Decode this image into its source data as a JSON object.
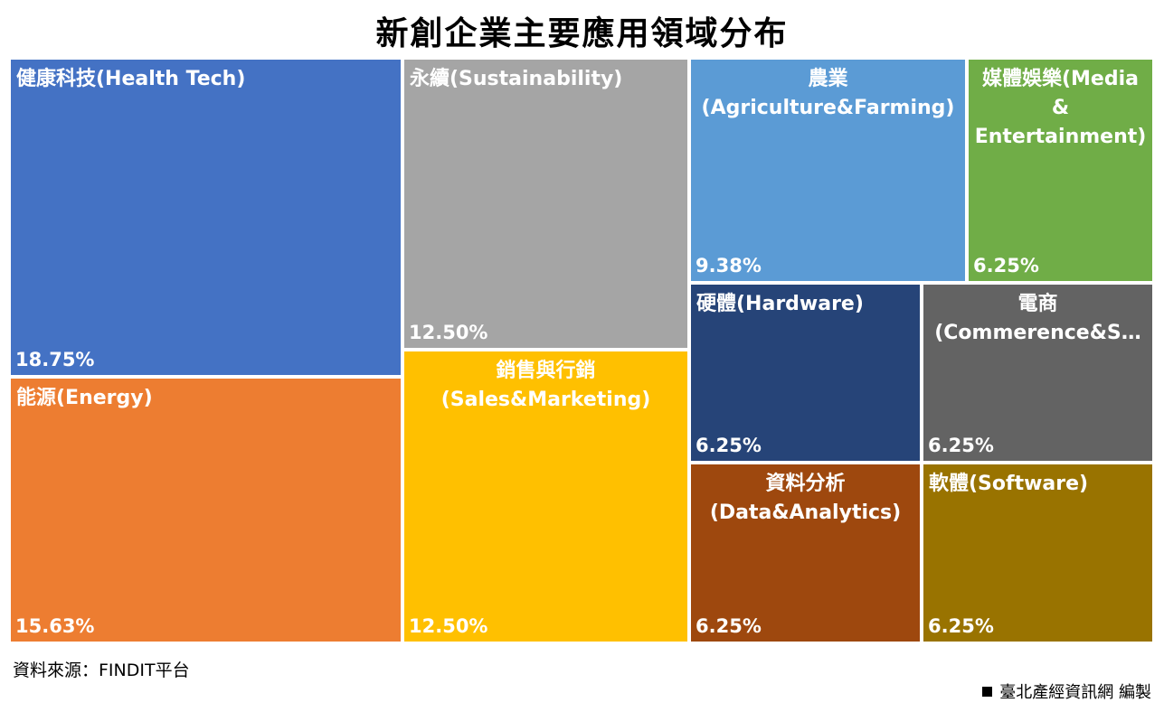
{
  "title": "新創企業主要應用領域分布",
  "source": "資料來源：FINDIT平台",
  "credit": "臺北產經資訊網  編製",
  "chart_data": {
    "type": "treemap",
    "title": "新創企業主要應用領域分布",
    "unit": "%",
    "items": [
      {
        "label": "健康科技(Health Tech)",
        "value": 18.75,
        "display": "18.75%",
        "color": "#4472C4"
      },
      {
        "label": "能源(Energy)",
        "value": 15.63,
        "display": "15.63%",
        "color": "#ED7D31"
      },
      {
        "label": "永續(Sustainability)",
        "value": 12.5,
        "display": "12.50%",
        "color": "#A5A5A5"
      },
      {
        "label": "銷售與行銷\n(Sales&Marketing)",
        "value": 12.5,
        "display": "12.50%",
        "color": "#FFC000"
      },
      {
        "label": "農業\n(Agriculture&Farming)",
        "value": 9.38,
        "display": "9.38%",
        "color": "#5B9BD5"
      },
      {
        "label": "媒體娛樂(Media\n&\nEntertainment)",
        "value": 6.25,
        "display": "6.25%",
        "color": "#70AD47"
      },
      {
        "label": "硬體(Hardware)",
        "value": 6.25,
        "display": "6.25%",
        "color": "#264478"
      },
      {
        "label": "電商\n(Commerence&S…",
        "value": 6.25,
        "display": "6.25%",
        "color": "#636363"
      },
      {
        "label": "資料分析\n(Data&Analytics)",
        "value": 6.25,
        "display": "6.25%",
        "color": "#9E480E"
      },
      {
        "label": "軟體(Software)",
        "value": 6.25,
        "display": "6.25%",
        "color": "#997300"
      }
    ]
  }
}
